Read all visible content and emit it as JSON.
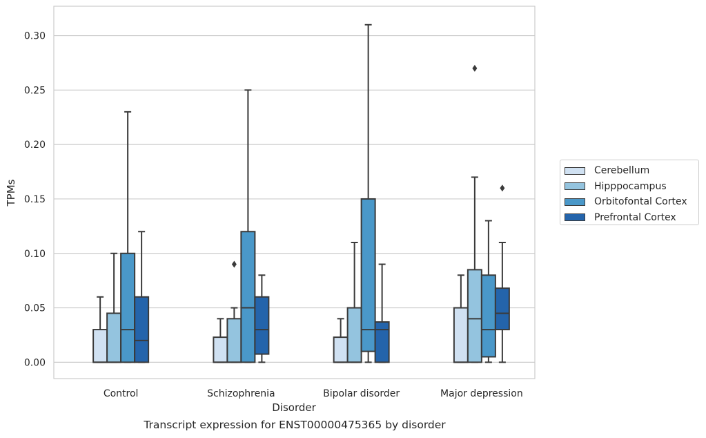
{
  "caption": "Transcript expression for ENST00000475365 by disorder",
  "chart_data": {
    "type": "boxplot",
    "title": "",
    "xlabel": "Disorder",
    "ylabel": "TPMs",
    "ylim": [
      -0.015,
      0.327
    ],
    "yticks": [
      0.0,
      0.05,
      0.1,
      0.15,
      0.2,
      0.25,
      0.3
    ],
    "ytick_labels": [
      "0.00",
      "0.05",
      "0.10",
      "0.15",
      "0.20",
      "0.25",
      "0.30"
    ],
    "grid": true,
    "legend_position": "right",
    "categories": [
      "Control",
      "Schizophrenia",
      "Bipolar disorder",
      "Major depression"
    ],
    "series": [
      {
        "name": "Cerebellum",
        "color": "#d0e1f2",
        "boxes": [
          {
            "whislo": 0.0,
            "q1": 0.0,
            "med": 0.0,
            "q3": 0.03,
            "whishi": 0.06,
            "fliers": []
          },
          {
            "whislo": 0.0,
            "q1": 0.0,
            "med": 0.0,
            "q3": 0.023,
            "whishi": 0.04,
            "fliers": []
          },
          {
            "whislo": 0.0,
            "q1": 0.0,
            "med": 0.0,
            "q3": 0.023,
            "whishi": 0.04,
            "fliers": []
          },
          {
            "whislo": 0.0,
            "q1": 0.0,
            "med": 0.0,
            "q3": 0.05,
            "whishi": 0.08,
            "fliers": []
          }
        ]
      },
      {
        "name": "Hipppocampus",
        "color": "#94c4df",
        "boxes": [
          {
            "whislo": 0.0,
            "q1": 0.0,
            "med": 0.0,
            "q3": 0.045,
            "whishi": 0.1,
            "fliers": []
          },
          {
            "whislo": 0.0,
            "q1": 0.0,
            "med": 0.0,
            "q3": 0.04,
            "whishi": 0.05,
            "fliers": [
              0.09
            ]
          },
          {
            "whislo": 0.0,
            "q1": 0.0,
            "med": 0.0,
            "q3": 0.05,
            "whishi": 0.11,
            "fliers": []
          },
          {
            "whislo": 0.0,
            "q1": 0.0,
            "med": 0.04,
            "q3": 0.085,
            "whishi": 0.17,
            "fliers": [
              0.27
            ]
          }
        ]
      },
      {
        "name": "Orbitofontal Cortex",
        "color": "#4a98c9",
        "boxes": [
          {
            "whislo": 0.0,
            "q1": 0.0,
            "med": 0.03,
            "q3": 0.1,
            "whishi": 0.23,
            "fliers": []
          },
          {
            "whislo": 0.0,
            "q1": 0.0,
            "med": 0.05,
            "q3": 0.12,
            "whishi": 0.25,
            "fliers": []
          },
          {
            "whislo": 0.0,
            "q1": 0.01,
            "med": 0.03,
            "q3": 0.15,
            "whishi": 0.31,
            "fliers": []
          },
          {
            "whislo": 0.0,
            "q1": 0.005,
            "med": 0.03,
            "q3": 0.08,
            "whishi": 0.13,
            "fliers": []
          }
        ]
      },
      {
        "name": "Prefrontal Cortex",
        "color": "#2464ab",
        "boxes": [
          {
            "whislo": 0.0,
            "q1": 0.0,
            "med": 0.02,
            "q3": 0.06,
            "whishi": 0.12,
            "fliers": []
          },
          {
            "whislo": 0.0,
            "q1": 0.0075,
            "med": 0.03,
            "q3": 0.06,
            "whishi": 0.08,
            "fliers": []
          },
          {
            "whislo": 0.0,
            "q1": 0.0,
            "med": 0.03,
            "q3": 0.037,
            "whishi": 0.09,
            "fliers": []
          },
          {
            "whislo": 0.0,
            "q1": 0.03,
            "med": 0.045,
            "q3": 0.068,
            "whishi": 0.11,
            "fliers": [
              0.16
            ]
          }
        ]
      }
    ]
  }
}
